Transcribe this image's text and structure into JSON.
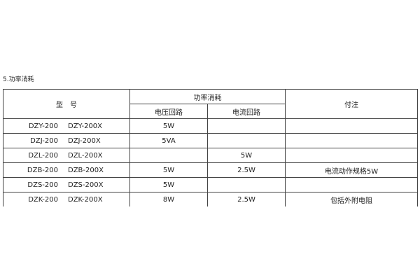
{
  "section_title": "5.功率消耗",
  "table": {
    "headers": {
      "model": "型　号",
      "power": "功率消耗",
      "voltage_circuit": "电压回路",
      "current_circuit": "电流回路",
      "notes": "付注"
    },
    "rows": [
      {
        "model_a": "DZY-200",
        "model_b": "DZY-200X",
        "voltage": "5W",
        "current": "",
        "note": ""
      },
      {
        "model_a": "DZJ-200",
        "model_b": "DZJ-200X",
        "voltage": "5VA",
        "current": "",
        "note": ""
      },
      {
        "model_a": "DZL-200",
        "model_b": "DZL-200X",
        "voltage": "",
        "current": "5W",
        "note": ""
      },
      {
        "model_a": "DZB-200",
        "model_b": "DZB-200X",
        "voltage": "5W",
        "current": "2.5W",
        "note": "电流动作规格5W"
      },
      {
        "model_a": "DZS-200",
        "model_b": "DZS-200X",
        "voltage": "5W",
        "current": "",
        "note": ""
      },
      {
        "model_a": "DZK-200",
        "model_b": "DZK-200X",
        "voltage": "8W",
        "current": "2.5W",
        "note": "包括外附电阻"
      }
    ]
  }
}
